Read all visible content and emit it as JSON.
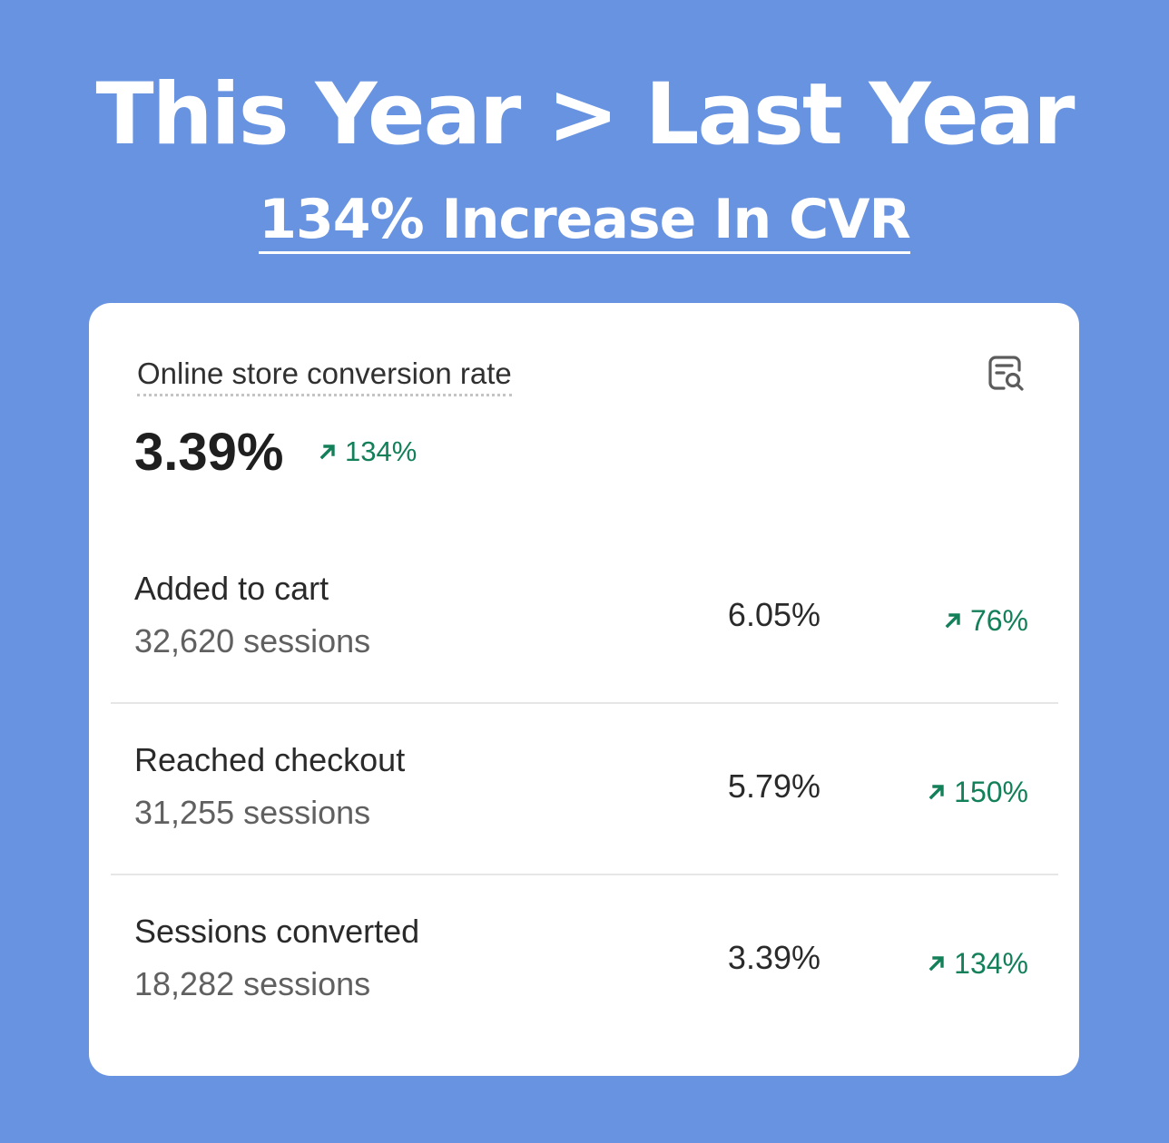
{
  "headline": "This Year > Last Year",
  "subheadline": "134% Increase In CVR",
  "card": {
    "metric_title": "Online store conversion rate",
    "metric_value": "3.39%",
    "metric_change": "134%",
    "icon": "report-search-icon",
    "rows": [
      {
        "label": "Added to cart",
        "sessions": "32,620 sessions",
        "rate": "6.05%",
        "change": "76%"
      },
      {
        "label": "Reached checkout",
        "sessions": "31,255 sessions",
        "rate": "5.79%",
        "change": "150%"
      },
      {
        "label": "Sessions converted",
        "sessions": "18,282 sessions",
        "rate": "3.39%",
        "change": "134%"
      }
    ]
  },
  "colors": {
    "background": "#6893e1",
    "card": "#ffffff",
    "positive": "#13805a",
    "text_primary": "#1f1f1f",
    "text_secondary": "#606060"
  }
}
